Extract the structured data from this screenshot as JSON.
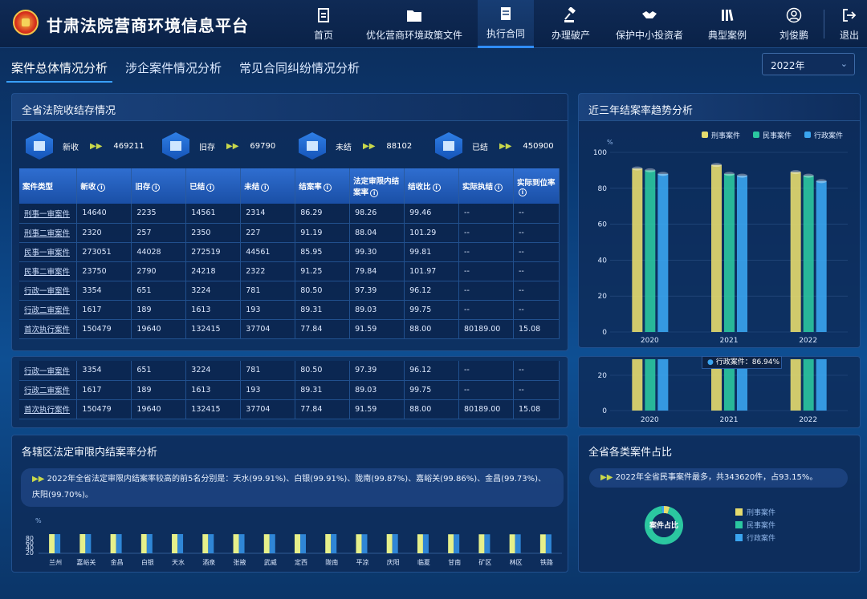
{
  "header": {
    "title": "甘肃法院营商环境信息平台",
    "nav": [
      {
        "label": "首页",
        "icon": "document-icon"
      },
      {
        "label": "优化营商环境政策文件",
        "icon": "folder-icon"
      },
      {
        "label": "执行合同",
        "icon": "contract-icon"
      },
      {
        "label": "办理破产",
        "icon": "gavel-icon"
      },
      {
        "label": "保护中小投资者",
        "icon": "handshake-icon"
      },
      {
        "label": "典型案例",
        "icon": "books-icon"
      },
      {
        "label": "刘俊鹏",
        "icon": "user-icon"
      },
      {
        "label": "退出",
        "icon": "logout-icon"
      }
    ]
  },
  "tabs": [
    "案件总体情况分析",
    "涉企案件情况分析",
    "常见合同纠纷情况分析"
  ],
  "year_select": "2022年",
  "panel1": {
    "title": "全省法院收结存情况",
    "stats": [
      {
        "label": "新收",
        "value": "469211",
        "icon": "court-icon"
      },
      {
        "label": "旧存",
        "value": "69790",
        "icon": "folder-icon"
      },
      {
        "label": "未结",
        "value": "88102",
        "icon": "inbox-icon"
      },
      {
        "label": "已结",
        "value": "450900",
        "icon": "check-doc-icon"
      }
    ],
    "headers": [
      "案件类型",
      "新收",
      "旧存",
      "已结",
      "未结",
      "结案率",
      "法定审限内结案率",
      "结收比",
      "实际执结",
      "实际到位率"
    ],
    "rows": [
      [
        "刑事一审案件",
        "14640",
        "2235",
        "14561",
        "2314",
        "86.29",
        "98.26",
        "99.46",
        "--",
        "--"
      ],
      [
        "刑事二审案件",
        "2320",
        "257",
        "2350",
        "227",
        "91.19",
        "88.04",
        "101.29",
        "--",
        "--"
      ],
      [
        "民事一审案件",
        "273051",
        "44028",
        "272519",
        "44561",
        "85.95",
        "99.30",
        "99.81",
        "--",
        "--"
      ],
      [
        "民事二审案件",
        "23750",
        "2790",
        "24218",
        "2322",
        "91.25",
        "79.84",
        "101.97",
        "--",
        "--"
      ],
      [
        "行政一审案件",
        "3354",
        "651",
        "3224",
        "781",
        "80.50",
        "97.39",
        "96.12",
        "--",
        "--"
      ],
      [
        "行政二审案件",
        "1617",
        "189",
        "1613",
        "193",
        "89.31",
        "89.03",
        "99.75",
        "--",
        "--"
      ],
      [
        "首次执行案件",
        "150479",
        "19640",
        "132415",
        "37704",
        "77.84",
        "91.59",
        "88.00",
        "80189.00",
        "15.08"
      ]
    ],
    "rows_repeat": [
      [
        "行政一审案件",
        "3354",
        "651",
        "3224",
        "781",
        "80.50",
        "97.39",
        "96.12",
        "--",
        "--"
      ],
      [
        "行政二审案件",
        "1617",
        "189",
        "1613",
        "193",
        "89.31",
        "89.03",
        "99.75",
        "--",
        "--"
      ],
      [
        "首次执行案件",
        "150479",
        "19640",
        "132415",
        "37704",
        "77.84",
        "91.59",
        "88.00",
        "80189.00",
        "15.08"
      ]
    ]
  },
  "panel2": {
    "title": "近三年结案率趋势分析",
    "unit": "%",
    "tooltip": "行政案件：86.94%"
  },
  "chart_data": [
    {
      "type": "bar",
      "title": "近三年结案率趋势分析",
      "ylabel": "%",
      "categories": [
        "2020",
        "2021",
        "2022"
      ],
      "ylim": [
        0,
        100
      ],
      "yticks": [
        0,
        20,
        40,
        60,
        80,
        100
      ],
      "series": [
        {
          "name": "刑事案件",
          "color": "#e6dc6e",
          "values": [
            91,
            93,
            89
          ]
        },
        {
          "name": "民事案件",
          "color": "#2bc7a0",
          "values": [
            90,
            88,
            87
          ]
        },
        {
          "name": "行政案件",
          "color": "#3aa5f0",
          "values": [
            88,
            87,
            84
          ]
        }
      ]
    },
    {
      "type": "bar",
      "title": "各辖区法定审限内结案率分析",
      "ylabel": "%",
      "yticks": [
        20,
        40,
        60,
        80
      ],
      "categories": [
        "兰州",
        "嘉峪关",
        "金昌",
        "白银",
        "天水",
        "酒泉",
        "张掖",
        "武威",
        "定西",
        "陇南",
        "平凉",
        "庆阳",
        "临夏",
        "甘南",
        "矿区",
        "林区",
        "铁路"
      ],
      "values": [
        99.7,
        99.86,
        99.73,
        99.91,
        99.91,
        99.5,
        99.4,
        99.3,
        99.2,
        99.87,
        99.1,
        99.7,
        99.0,
        98.9,
        98.8,
        98.7,
        98.6
      ]
    },
    {
      "type": "pie",
      "title": "全省各类案件占比",
      "center_label": "案件占比",
      "categories": [
        "刑事案件",
        "民事案件",
        "行政案件"
      ],
      "values": [
        4.9,
        93.15,
        1.95
      ]
    }
  ],
  "panel3": {
    "title": "各辖区法定审限内结案率分析",
    "note": "2022年全省法定审限内结案率较高的前5名分别是：天水(99.91%)、白银(99.91%)、陇南(99.87%)、嘉峪关(99.86%)、金昌(99.73%)、庆阳(99.70%)。",
    "unit": "%"
  },
  "panel4": {
    "title": "全省各类案件占比",
    "note": "2022年全省民事案件最多，共343620件，占93.15%。"
  },
  "colors": {
    "accent": "#2f8cff",
    "yellow": "#e6dc6e",
    "green": "#2bc7a0",
    "blue": "#3aa5f0"
  }
}
